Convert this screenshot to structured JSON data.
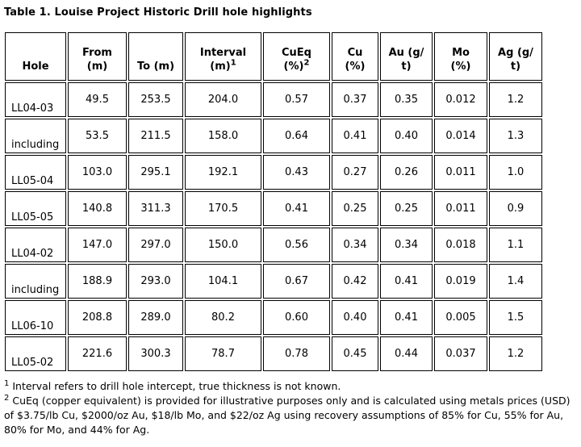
{
  "style": {
    "background_color": "#ffffff",
    "text_color": "#000000",
    "border_color": "#000000"
  },
  "title": "Table 1. Louise Project Historic Drill hole highlights",
  "table": {
    "columns": [
      {
        "label": "Hole",
        "sup": ""
      },
      {
        "label": "From\n(m)",
        "sup": ""
      },
      {
        "label": "To (m)",
        "sup": ""
      },
      {
        "label": "Interval\n(m)",
        "sup": "1"
      },
      {
        "label": "CuEq\n(%)",
        "sup": "2"
      },
      {
        "label": "Cu\n(%)",
        "sup": ""
      },
      {
        "label": "Au (g/\nt)",
        "sup": ""
      },
      {
        "label": "Mo\n(%)",
        "sup": ""
      },
      {
        "label": "Ag (g/\nt)",
        "sup": ""
      }
    ],
    "rows": [
      {
        "hole": "LL04-03",
        "from": "49.5",
        "to": "253.5",
        "interval": "204.0",
        "cueq": "0.57",
        "cu": "0.37",
        "au": "0.35",
        "mo": "0.012",
        "ag": "1.2"
      },
      {
        "hole": "including",
        "from": "53.5",
        "to": "211.5",
        "interval": "158.0",
        "cueq": "0.64",
        "cu": "0.41",
        "au": "0.40",
        "mo": "0.014",
        "ag": "1.3"
      },
      {
        "hole": "LL05-04",
        "from": "103.0",
        "to": "295.1",
        "interval": "192.1",
        "cueq": "0.43",
        "cu": "0.27",
        "au": "0.26",
        "mo": "0.011",
        "ag": "1.0"
      },
      {
        "hole": "LL05-05",
        "from": "140.8",
        "to": "311.3",
        "interval": "170.5",
        "cueq": "0.41",
        "cu": "0.25",
        "au": "0.25",
        "mo": "0.011",
        "ag": "0.9"
      },
      {
        "hole": "LL04-02",
        "from": "147.0",
        "to": "297.0",
        "interval": "150.0",
        "cueq": "0.56",
        "cu": "0.34",
        "au": "0.34",
        "mo": "0.018",
        "ag": "1.1"
      },
      {
        "hole": "including",
        "from": "188.9",
        "to": "293.0",
        "interval": "104.1",
        "cueq": "0.67",
        "cu": "0.42",
        "au": "0.41",
        "mo": "0.019",
        "ag": "1.4"
      },
      {
        "hole": "LL06-10",
        "from": "208.8",
        "to": "289.0",
        "interval": "80.2",
        "cueq": "0.60",
        "cu": "0.40",
        "au": "0.41",
        "mo": "0.005",
        "ag": "1.5"
      },
      {
        "hole": "LL05-02",
        "from": "221.6",
        "to": "300.3",
        "interval": "78.7",
        "cueq": "0.78",
        "cu": "0.45",
        "au": "0.44",
        "mo": "0.037",
        "ag": "1.2"
      }
    ]
  },
  "footnotes": [
    {
      "sup": "1",
      "text": "Interval refers to drill hole intercept, true thickness is not known."
    },
    {
      "sup": "2",
      "text": "CuEq (copper equivalent) is provided for illustrative purposes only and is calculated using metals prices (USD) of $3.75/lb Cu, $2000/oz Au, $18/lb Mo, and $22/oz Ag using recovery assumptions of 85% for Cu, 55% for Au, 80% for Mo, and 44% for Ag."
    }
  ]
}
